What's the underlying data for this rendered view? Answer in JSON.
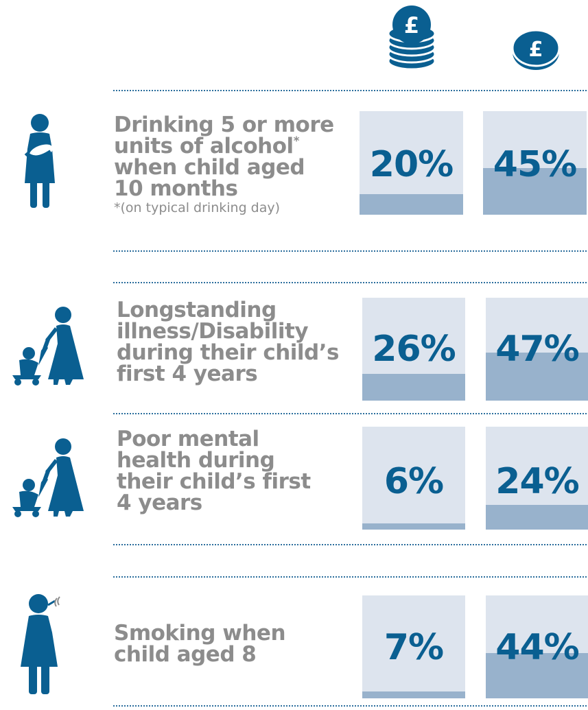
{
  "chart_data": {
    "type": "bar",
    "categories": [
      "Drinking 5 or more units of alcohol* when child aged 10 months",
      "Longstanding illness/Disability during their child's first 4 years",
      "Poor mental health during their child's first 4 years",
      "Smoking when child aged 8"
    ],
    "series": [
      {
        "icon": "coin-stack-pound-icon",
        "values": [
          20,
          26,
          6,
          7
        ]
      },
      {
        "icon": "single-coin-pound-icon",
        "values": [
          45,
          47,
          24,
          44
        ]
      }
    ],
    "ylim": [
      0,
      100
    ]
  },
  "header": {
    "coin_symbol_stack": "£",
    "coin_symbol_single": "£"
  },
  "rows": [
    {
      "lines": [
        "Drinking 5 or more",
        "units of alcohol",
        "when child aged",
        "10 months"
      ],
      "sup": "*",
      "footnote": "*(on typical drinking day)",
      "values": [
        "20%",
        "45%"
      ],
      "icon": "mother-holding-baby-icon"
    },
    {
      "lines": [
        "Longstanding",
        "illness/Disability",
        "during their child’s",
        "first 4 years"
      ],
      "values": [
        "26%",
        "47%"
      ],
      "icon": "parent-with-pushchair-icon"
    },
    {
      "lines": [
        "Poor mental",
        "health during",
        "their child’s first",
        "4 years"
      ],
      "values": [
        "6%",
        "24%"
      ],
      "icon": "parent-with-pushchair-icon"
    },
    {
      "lines": [
        "Smoking when",
        "child aged 8"
      ],
      "values": [
        "7%",
        "44%"
      ],
      "icon": "woman-smoking-icon"
    }
  ],
  "colors": {
    "icon": "#0a5f91",
    "label": "#8c8c8c",
    "box_bg": "#dde4ee",
    "box_fill": "#98b2cc",
    "percent": "#0a5f91",
    "divider": "#2a6d9c"
  }
}
